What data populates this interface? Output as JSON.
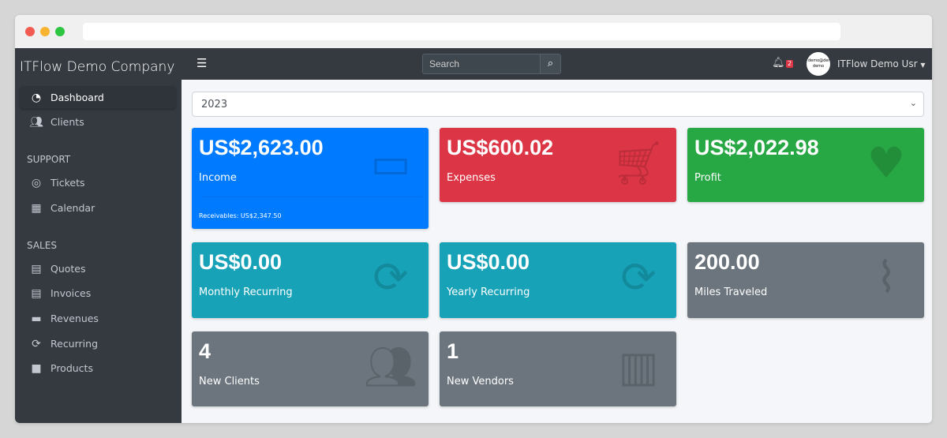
{
  "company": "ITFlow Demo Company",
  "sidebar": {
    "items": [
      {
        "label": "Dashboard",
        "icon": "tachometer-icon"
      },
      {
        "label": "Clients",
        "icon": "users-icon"
      }
    ],
    "support_header": "SUPPORT",
    "support": [
      {
        "label": "Tickets",
        "icon": "life-ring-icon"
      },
      {
        "label": "Calendar",
        "icon": "calendar-icon"
      }
    ],
    "sales_header": "SALES",
    "sales": [
      {
        "label": "Quotes",
        "icon": "file-icon"
      },
      {
        "label": "Invoices",
        "icon": "invoice-icon"
      },
      {
        "label": "Revenues",
        "icon": "credit-card-icon"
      },
      {
        "label": "Recurring",
        "icon": "sync-icon"
      },
      {
        "label": "Products",
        "icon": "box-icon"
      }
    ]
  },
  "topnav": {
    "search_placeholder": "Search",
    "notifications": "2",
    "avatar_text": "demo@demo demo",
    "user": "ITFlow Demo Usr"
  },
  "year_select": "2023",
  "cards": [
    {
      "value": "US$2,623.00",
      "label": "Income",
      "footer": "Receivables: US$2,347.50",
      "color": "#007bff"
    },
    {
      "value": "US$600.02",
      "label": "Expenses",
      "color": "#dc3545"
    },
    {
      "value": "US$2,022.98",
      "label": "Profit",
      "color": "#28a745"
    },
    {
      "value": "US$0.00",
      "label": "Monthly Recurring",
      "color": "#17a2b8"
    },
    {
      "value": "US$0.00",
      "label": "Yearly Recurring",
      "color": "#17a2b8"
    },
    {
      "value": "200.00",
      "label": "Miles Traveled",
      "color": "#6c757d"
    },
    {
      "value": "4",
      "label": "New Clients",
      "color": "#6c757d"
    },
    {
      "value": "1",
      "label": "New Vendors",
      "color": "#6c757d"
    }
  ]
}
